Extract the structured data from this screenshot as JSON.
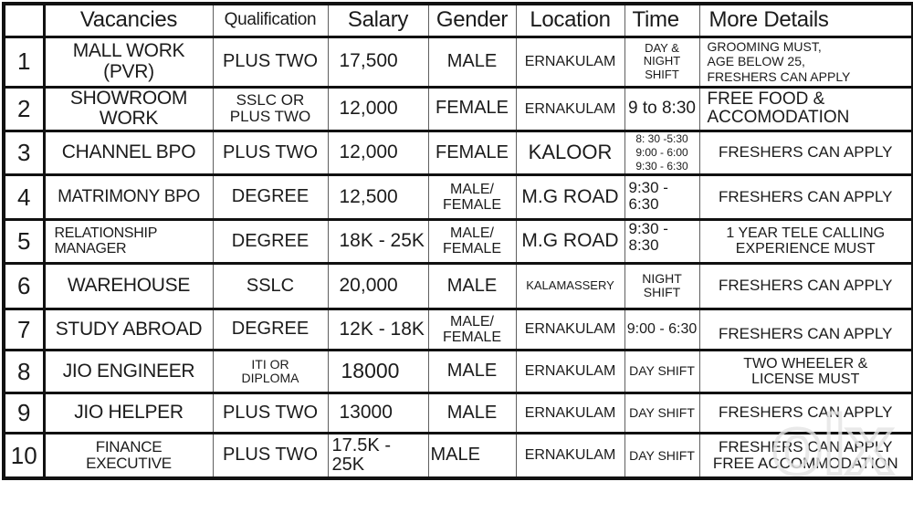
{
  "table": {
    "headers": [
      "",
      "Vacancies",
      "Qualification",
      "Salary",
      "Gender",
      "Location",
      "Time",
      "More Details"
    ],
    "rows": [
      {
        "no": "1",
        "vacancy": "MALL WORK\n(PVR)",
        "qualification": "PLUS TWO",
        "salary": "17,500",
        "gender": "MALE",
        "location": "ERNAKULAM",
        "time": "DAY &\nNIGHT\nSHIFT",
        "details": "GROOMING MUST,\nAGE BELOW 25,\nFRESHERS CAN APPLY"
      },
      {
        "no": "2",
        "vacancy": "SHOWROOM\nWORK",
        "qualification": "SSLC OR\nPLUS TWO",
        "salary": "12,000",
        "gender": "FEMALE",
        "location": "ERNAKULAM",
        "time": "9 to 8:30",
        "details": "FREE FOOD &\nACCOMODATION"
      },
      {
        "no": "3",
        "vacancy": "CHANNEL BPO",
        "qualification": "PLUS TWO",
        "salary": "12,000",
        "gender": "FEMALE",
        "location": "KALOOR",
        "time": "8: 30 -5:30\n9:00 - 6:00\n9:30 - 6:30",
        "details": "FRESHERS CAN APPLY"
      },
      {
        "no": "4",
        "vacancy": "MATRIMONY BPO",
        "qualification": "DEGREE",
        "salary": "12,500",
        "gender": "MALE/\nFEMALE",
        "location": "M.G ROAD",
        "time": "9:30 - 6:30",
        "details": "FRESHERS CAN APPLY"
      },
      {
        "no": "5",
        "vacancy": "RELATIONSHIP\nMANAGER",
        "qualification": "DEGREE",
        "salary": "18K - 25K",
        "gender": "MALE/\nFEMALE",
        "location": "M.G ROAD",
        "time": "9:30 - 8:30",
        "details": "1 YEAR TELE CALLING\nEXPERIENCE MUST"
      },
      {
        "no": "6",
        "vacancy": "WAREHOUSE",
        "qualification": "SSLC",
        "salary": "20,000",
        "gender": "MALE",
        "location": "KALAMASSERY",
        "time": "NIGHT\nSHIFT",
        "details": "FRESHERS CAN APPLY"
      },
      {
        "no": "7",
        "vacancy": "STUDY ABROAD",
        "qualification": "DEGREE",
        "salary": "12K - 18K",
        "gender": "MALE/\nFEMALE",
        "location": "ERNAKULAM",
        "time": "9:00 - 6:30",
        "details": "FRESHERS CAN APPLY"
      },
      {
        "no": "8",
        "vacancy": "JIO ENGINEER",
        "qualification": "ITI OR\nDIPLOMA",
        "salary": "18000",
        "gender": "MALE",
        "location": "ERNAKULAM",
        "time": "DAY SHIFT",
        "details": "TWO WHEELER &\nLICENSE MUST"
      },
      {
        "no": "9",
        "vacancy": "JIO HELPER",
        "qualification": "PLUS TWO",
        "salary": "13000",
        "gender": "MALE",
        "location": "ERNAKULAM",
        "time": "DAY SHIFT",
        "details": "FRESHERS CAN APPLY"
      },
      {
        "no": "10",
        "vacancy": "FINANCE\nEXECUTIVE",
        "qualification": "PLUS TWO",
        "salary": "17.5K - 25K",
        "gender": "MALE",
        "location": "ERNAKULAM",
        "time": "DAY SHIFT",
        "details": "FRESHERS CAN APPLY\nFREE ACCOMMODATION"
      }
    ]
  },
  "watermark": "olx",
  "colors": {
    "border_black": "#111111",
    "grid_gray": "#5f5f5f",
    "text": "#1b1b1b",
    "background": "#ffffff"
  }
}
